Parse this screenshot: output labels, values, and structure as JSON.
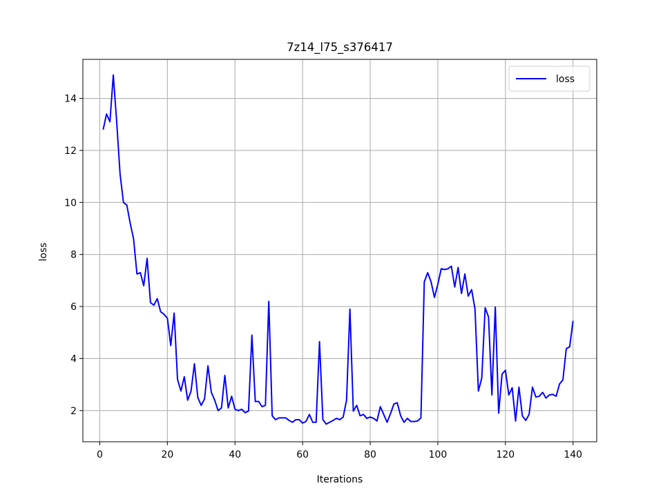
{
  "chart_data": {
    "type": "line",
    "title": "7z14_l75_s376417",
    "xlabel": "Iterations",
    "ylabel": "loss",
    "xlim": [
      -5,
      147
    ],
    "ylim": [
      0.8,
      15.5
    ],
    "xticks": [
      0,
      20,
      40,
      60,
      80,
      100,
      120,
      140
    ],
    "yticks": [
      2,
      4,
      6,
      8,
      10,
      12,
      14
    ],
    "grid": true,
    "legend_position": "top-right",
    "series": [
      {
        "name": "loss",
        "color": "#0000ff",
        "x": [
          1,
          2,
          3,
          4,
          5,
          6,
          7,
          8,
          9,
          10,
          11,
          12,
          13,
          14,
          15,
          16,
          17,
          18,
          19,
          20,
          21,
          22,
          23,
          24,
          25,
          26,
          27,
          28,
          29,
          30,
          31,
          32,
          33,
          34,
          35,
          36,
          37,
          38,
          39,
          40,
          41,
          42,
          43,
          44,
          45,
          46,
          47,
          48,
          49,
          50,
          51,
          52,
          53,
          54,
          55,
          56,
          57,
          58,
          59,
          60,
          61,
          62,
          63,
          64,
          65,
          66,
          67,
          68,
          69,
          70,
          71,
          72,
          73,
          74,
          75,
          76,
          77,
          78,
          79,
          80,
          81,
          82,
          83,
          84,
          85,
          86,
          87,
          88,
          89,
          90,
          91,
          92,
          93,
          94,
          95,
          96,
          97,
          98,
          99,
          100,
          101,
          102,
          103,
          104,
          105,
          106,
          107,
          108,
          109,
          110,
          111,
          112,
          113,
          114,
          115,
          116,
          117,
          118,
          119,
          120,
          121,
          122,
          123,
          124,
          125,
          126,
          127,
          128,
          129,
          130,
          131,
          132,
          133,
          134,
          135,
          136,
          137,
          138,
          139,
          140
        ],
        "y": [
          12.8,
          13.4,
          13.1,
          14.9,
          13.1,
          11.1,
          10.0,
          9.9,
          9.2,
          8.6,
          7.25,
          7.3,
          6.8,
          7.85,
          6.15,
          6.05,
          6.3,
          5.8,
          5.7,
          5.55,
          4.5,
          5.75,
          3.2,
          2.75,
          3.3,
          2.4,
          2.75,
          3.8,
          2.5,
          2.2,
          2.45,
          3.72,
          2.7,
          2.4,
          2.0,
          2.1,
          3.35,
          2.1,
          2.55,
          2.05,
          2.0,
          2.05,
          1.92,
          1.98,
          4.9,
          2.35,
          2.35,
          2.15,
          2.2,
          6.2,
          1.8,
          1.65,
          1.72,
          1.72,
          1.72,
          1.62,
          1.55,
          1.65,
          1.65,
          1.52,
          1.58,
          1.85,
          1.55,
          1.55,
          4.65,
          1.65,
          1.48,
          1.55,
          1.62,
          1.7,
          1.65,
          1.75,
          2.4,
          5.9,
          1.98,
          2.2,
          1.8,
          1.85,
          1.7,
          1.75,
          1.7,
          1.6,
          2.15,
          1.85,
          1.55,
          1.88,
          2.25,
          2.3,
          1.8,
          1.55,
          1.7,
          1.58,
          1.58,
          1.6,
          1.72,
          6.95,
          7.3,
          6.95,
          6.35,
          6.85,
          7.45,
          7.42,
          7.45,
          7.55,
          6.75,
          7.5,
          6.5,
          7.25,
          6.4,
          6.65,
          5.9,
          2.75,
          3.25,
          5.95,
          5.6,
          2.6,
          5.98,
          1.9,
          3.4,
          3.55,
          2.6,
          2.88,
          1.6,
          2.9,
          1.8,
          1.62,
          1.85,
          2.9,
          2.52,
          2.55,
          2.7,
          2.48,
          2.6,
          2.62,
          2.55,
          3.02,
          3.18,
          4.38,
          4.45,
          5.45
        ]
      }
    ]
  }
}
